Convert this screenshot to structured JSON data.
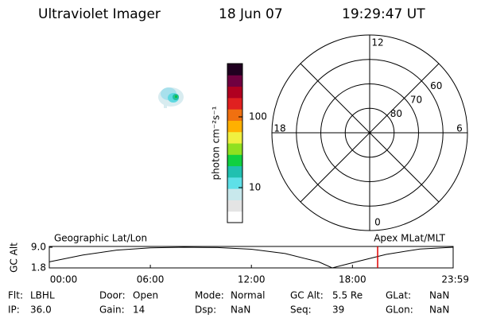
{
  "header": {
    "title": "Ultraviolet Imager",
    "date": "18 Jun 07",
    "time": "19:29:47 UT"
  },
  "colorbar": {
    "label": "photon cm⁻²s⁻¹",
    "log": true,
    "lim": [
      3.2,
      566
    ],
    "ticks": [
      10,
      100
    ],
    "colors": [
      "#ffffff",
      "#e4e4e4",
      "#c8e8ec",
      "#5ee0e8",
      "#20c0b0",
      "#10d040",
      "#90e020",
      "#f0f040",
      "#ffb000",
      "#f07010",
      "#e02020",
      "#b00020",
      "#700040",
      "#200020"
    ]
  },
  "polar": {
    "lat_lim": [
      50,
      90
    ],
    "lat_ticks": [
      80,
      70,
      60
    ],
    "mlt_ticks": [
      12,
      18,
      6,
      0
    ]
  },
  "timeline": {
    "left_label": "Geographic Lat/Lon",
    "right_label": "Apex MLat/MLT",
    "ylabel": "GC Alt",
    "xlim": [
      0,
      23.98
    ],
    "xticks": [
      {
        "value": 0,
        "label": "00:00"
      },
      {
        "value": 6,
        "label": "06:00"
      },
      {
        "value": 12,
        "label": "12:00"
      },
      {
        "value": 18,
        "label": "18:00"
      },
      {
        "value": 23.98,
        "label": "23:59"
      }
    ],
    "ylim": [
      1.8,
      9.0
    ],
    "yticks": [
      1.8,
      {
        "value": 9.0,
        "label": "9.0"
      }
    ],
    "x": [
      0,
      2,
      4,
      6,
      8,
      10,
      12,
      14,
      16,
      16.8,
      18,
      20,
      22,
      23.98
    ],
    "values": [
      3.9,
      6.3,
      8.0,
      8.8,
      9.0,
      8.9,
      8.3,
      6.8,
      3.9,
      1.8,
      3.6,
      6.5,
      8.4,
      9.0
    ],
    "color": "#000000",
    "current_time": 19.4964,
    "current_color": "#e00000"
  },
  "footer": [
    [
      [
        "Flt:",
        "LBHL"
      ],
      [
        "IP:",
        "36.0"
      ]
    ],
    [
      [
        "Door:",
        "Open"
      ],
      [
        "Gain:",
        "14"
      ]
    ],
    [
      [
        "Mode:",
        "Normal"
      ],
      [
        "Dsp:",
        "NaN"
      ]
    ],
    [
      [
        "GC Alt:",
        "5.5 Re"
      ],
      [
        "Seq:",
        "39"
      ]
    ],
    [
      [
        "GLat:",
        "NaN"
      ],
      [
        "GLon:",
        "NaN"
      ]
    ]
  ]
}
